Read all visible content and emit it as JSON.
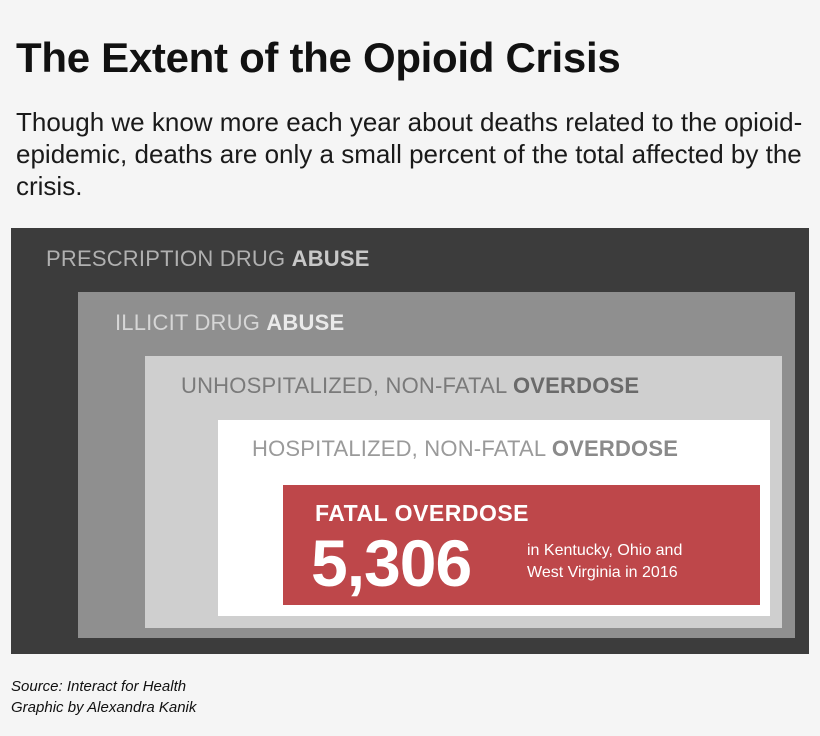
{
  "title": "The Extent of the Opioid Crisis",
  "subtitle": "Though we know more each year about deaths related to the opioid-epidemic, deaths are only a small percent of the total affected by the crisis.",
  "boxes": [
    {
      "label_light": "PRESCRIPTION DRUG ",
      "label_bold": "ABUSE",
      "background": "#3c3c3c"
    },
    {
      "label_light": "ILLICIT DRUG ",
      "label_bold": "ABUSE",
      "background": "#8f8f8f"
    },
    {
      "label_light": "UNHOSPITALIZED, NON-FATAL ",
      "label_bold": "OVERDOSE",
      "background": "#cfcfcf"
    },
    {
      "label_light": "HOSPITALIZED, NON-FATAL ",
      "label_bold": "OVERDOSE",
      "background": "#ffffff"
    }
  ],
  "fatal": {
    "label": "FATAL OVERDOSE",
    "value": "5,306",
    "note_line1": "in Kentucky, Ohio and",
    "note_line2": "West Virginia in 2016",
    "background": "#be474a"
  },
  "credits": {
    "source": "Source: Interact for Health",
    "graphic": "Graphic by Alexandra Kanik"
  }
}
